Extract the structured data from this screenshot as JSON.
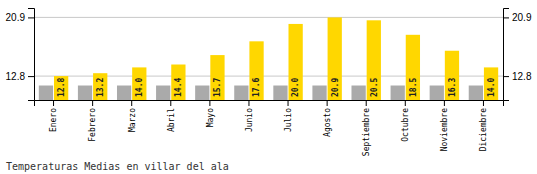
{
  "chart_data": {
    "type": "bar",
    "title": "Temperaturas Medias en villar del ala",
    "categories": [
      "Enero",
      "Febrero",
      "Marzo",
      "Abril",
      "Mayo",
      "Junio",
      "Julio",
      "Agosto",
      "Septiembre",
      "Octubre",
      "Noviembre",
      "Diciembre"
    ],
    "series": [
      {
        "color": "#AAAAAA",
        "values": [
          11.5,
          11.5,
          11.5,
          11.5,
          11.5,
          11.5,
          11.5,
          11.5,
          11.5,
          11.5,
          11.5,
          11.5
        ]
      },
      {
        "color": "#FFD700",
        "values": [
          12.8,
          13.2,
          14.0,
          14.4,
          15.7,
          17.6,
          20.0,
          20.9,
          20.5,
          18.5,
          16.3,
          14.0
        ],
        "data_labels": true,
        "value_labels": [
          "12.8",
          "13.2",
          "14.0",
          "14.4",
          "15.7",
          "17.6",
          "20.0",
          "20.9",
          "20.5",
          "18.5",
          "16.3",
          "14.0"
        ]
      }
    ],
    "ylim": [
      9.5,
      22.2
    ],
    "yticks": [
      12.8,
      20.9
    ],
    "grid": true
  }
}
